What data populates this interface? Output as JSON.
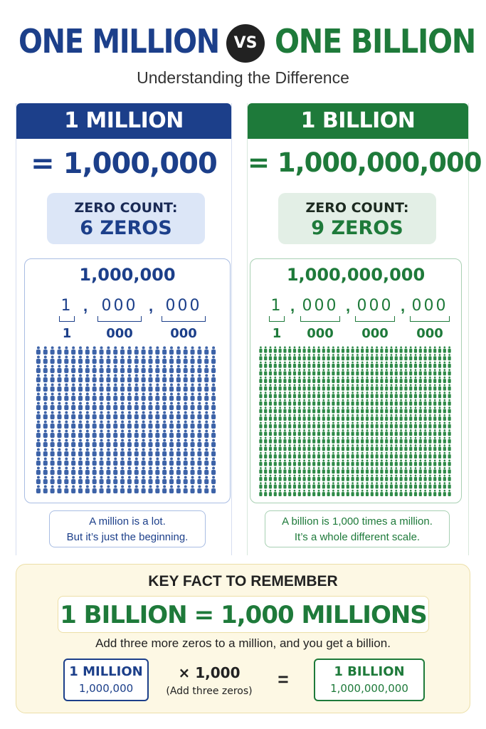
{
  "header": {
    "title_left": "ONE MILLION",
    "vs": "VS",
    "title_right": "ONE BILLION",
    "subtitle": "Understanding the Difference"
  },
  "million": {
    "heading": "1 MILLION",
    "equals": "= 1,000,000",
    "zero_label": "ZERO COUNT:",
    "zero_count": "6 ZEROS",
    "number": "1,000,000",
    "groups": [
      {
        "digits": "1",
        "label": "1"
      },
      {
        "digits": "000",
        "label": "000"
      },
      {
        "digits": "000",
        "label": "000"
      }
    ],
    "comma": ",",
    "people": {
      "cols": 26,
      "rows": 16,
      "color": "#3d63a8"
    },
    "note_line1": "A million is a lot.",
    "note_line2": "But it’s just the beginning."
  },
  "billion": {
    "heading": "1 BILLION",
    "equals": "= 1,000,000,000",
    "zero_label": "ZERO COUNT:",
    "zero_count": "9 ZEROS",
    "number": "1,000,000,000",
    "groups": [
      {
        "digits": "1",
        "label": "1"
      },
      {
        "digits": "000",
        "label": "000"
      },
      {
        "digits": "000",
        "label": "000"
      },
      {
        "digits": "000",
        "label": "000"
      }
    ],
    "comma": ",",
    "people": {
      "cols": 40,
      "rows": 20,
      "color": "#2e8a48"
    },
    "note_line1": "A billion is 1,000 times a million.",
    "note_line2": "It’s a whole different scale."
  },
  "key_fact": {
    "title": "KEY FACT TO REMEMBER",
    "eq_left": "1 BILLION",
    "eq_sign": "=",
    "eq_right": "1,000 MILLIONS",
    "text": "Add three more zeros to a million, and you get a billion.",
    "million_label": "1 MILLION",
    "million_value": "1,000,000",
    "times_label": "× 1,000",
    "times_note": "(Add three zeros)",
    "equals": "=",
    "billion_label": "1 BILLION",
    "billion_value": "1,000,000,000"
  }
}
